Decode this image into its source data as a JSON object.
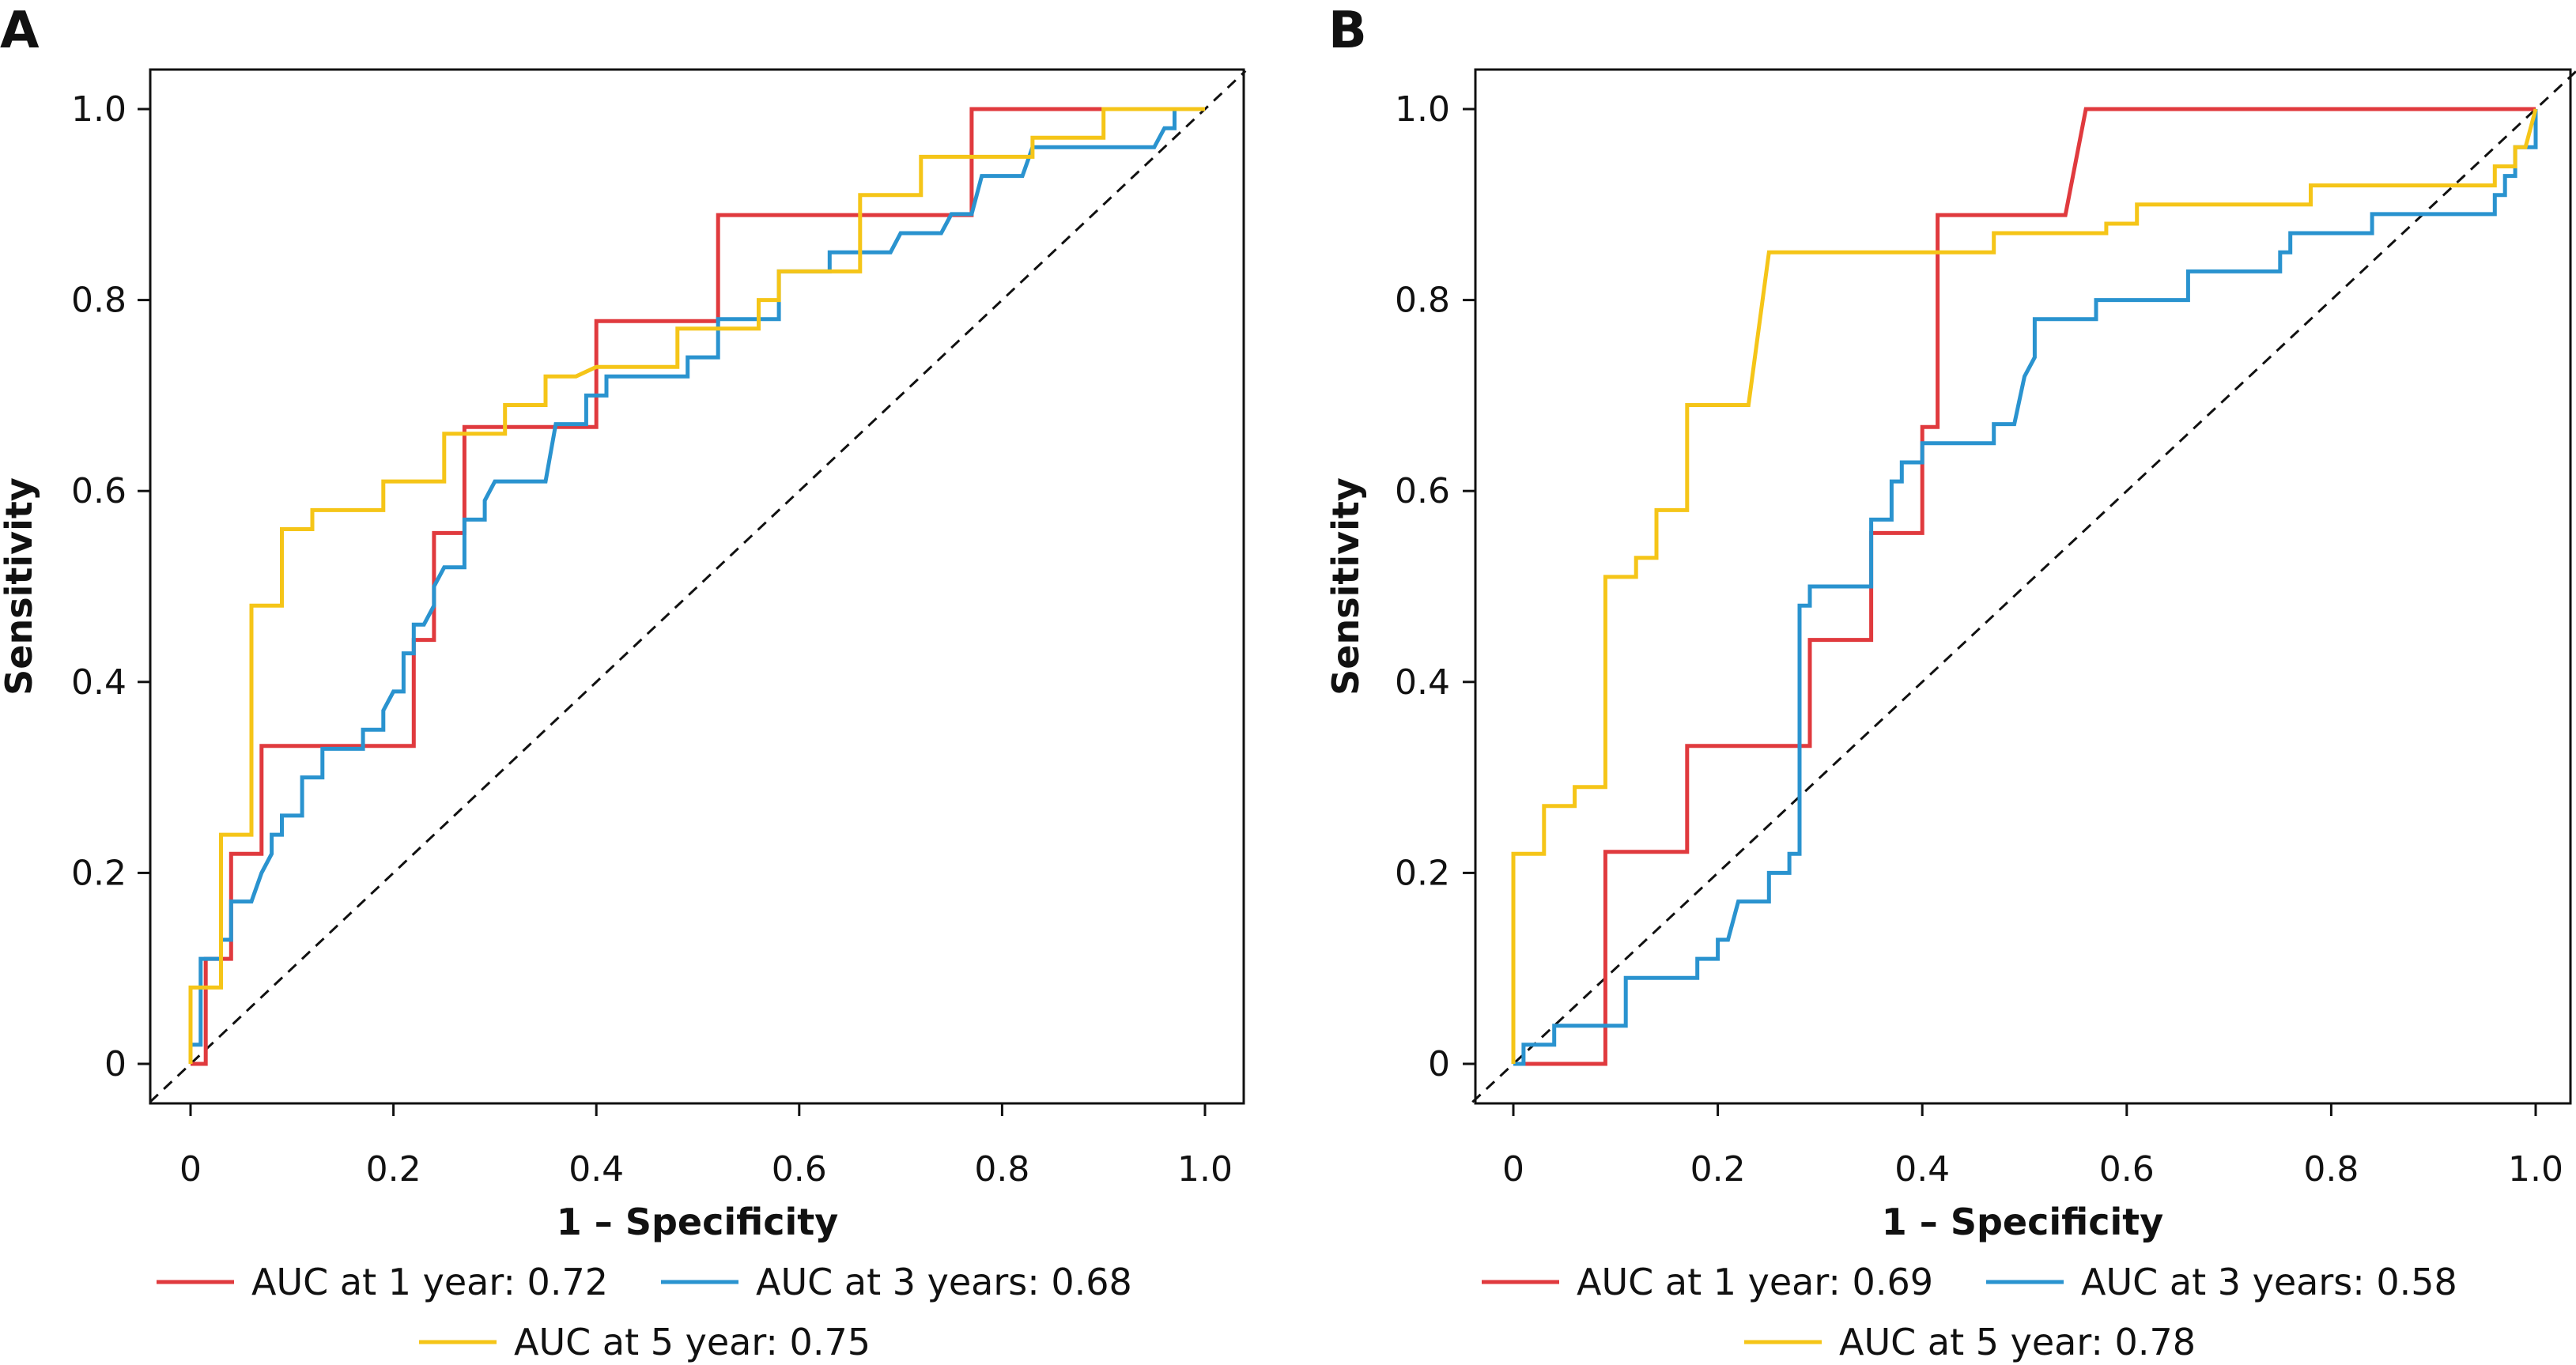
{
  "colors": {
    "red": "#E03A3E",
    "blue": "#2A93CF",
    "yellow": "#F5C518",
    "axis": "#111111",
    "diagonal": "#111111"
  },
  "chart_data": [
    {
      "panel": "A",
      "type": "line",
      "xlabel": "1 – Specificity",
      "ylabel": "Sensitivity",
      "xlim": [
        0,
        1
      ],
      "ylim": [
        0,
        1
      ],
      "xticks": [
        "0",
        "0.2",
        "0.4",
        "0.6",
        "0.8",
        "1.0"
      ],
      "yticks": [
        "0",
        "0.2",
        "0.4",
        "0.6",
        "0.8",
        "1.0"
      ],
      "reference_line": "diagonal dashed",
      "legend": [
        "AUC at 1 year: 0.72",
        "AUC at 3 years: 0.68",
        "AUC at 5 year: 0.75"
      ],
      "series": [
        {
          "name": "AUC at 1 year: 0.72",
          "color": "red",
          "points": [
            [
              0,
              0
            ],
            [
              0.015,
              0
            ],
            [
              0.015,
              0.11
            ],
            [
              0.04,
              0.11
            ],
            [
              0.04,
              0.22
            ],
            [
              0.07,
              0.22
            ],
            [
              0.07,
              0.333
            ],
            [
              0.22,
              0.333
            ],
            [
              0.22,
              0.444
            ],
            [
              0.24,
              0.444
            ],
            [
              0.24,
              0.556
            ],
            [
              0.27,
              0.556
            ],
            [
              0.27,
              0.667
            ],
            [
              0.4,
              0.667
            ],
            [
              0.4,
              0.778
            ],
            [
              0.52,
              0.778
            ],
            [
              0.52,
              0.889
            ],
            [
              0.77,
              0.889
            ],
            [
              0.77,
              1
            ],
            [
              1,
              1
            ]
          ]
        },
        {
          "name": "AUC at 3 years: 0.68",
          "color": "blue",
          "points": [
            [
              0,
              0
            ],
            [
              0,
              0.02
            ],
            [
              0.01,
              0.02
            ],
            [
              0.01,
              0.11
            ],
            [
              0.03,
              0.11
            ],
            [
              0.03,
              0.13
            ],
            [
              0.04,
              0.13
            ],
            [
              0.04,
              0.17
            ],
            [
              0.06,
              0.17
            ],
            [
              0.07,
              0.2
            ],
            [
              0.08,
              0.22
            ],
            [
              0.08,
              0.24
            ],
            [
              0.09,
              0.24
            ],
            [
              0.09,
              0.26
            ],
            [
              0.11,
              0.26
            ],
            [
              0.11,
              0.3
            ],
            [
              0.13,
              0.3
            ],
            [
              0.13,
              0.33
            ],
            [
              0.17,
              0.33
            ],
            [
              0.17,
              0.35
            ],
            [
              0.19,
              0.35
            ],
            [
              0.19,
              0.37
            ],
            [
              0.2,
              0.39
            ],
            [
              0.21,
              0.39
            ],
            [
              0.21,
              0.43
            ],
            [
              0.22,
              0.43
            ],
            [
              0.22,
              0.46
            ],
            [
              0.23,
              0.46
            ],
            [
              0.24,
              0.48
            ],
            [
              0.24,
              0.5
            ],
            [
              0.25,
              0.52
            ],
            [
              0.27,
              0.52
            ],
            [
              0.27,
              0.57
            ],
            [
              0.29,
              0.57
            ],
            [
              0.29,
              0.59
            ],
            [
              0.3,
              0.61
            ],
            [
              0.35,
              0.61
            ],
            [
              0.36,
              0.67
            ],
            [
              0.39,
              0.67
            ],
            [
              0.39,
              0.7
            ],
            [
              0.41,
              0.7
            ],
            [
              0.41,
              0.72
            ],
            [
              0.49,
              0.72
            ],
            [
              0.49,
              0.74
            ],
            [
              0.52,
              0.74
            ],
            [
              0.52,
              0.78
            ],
            [
              0.58,
              0.78
            ],
            [
              0.58,
              0.83
            ],
            [
              0.63,
              0.83
            ],
            [
              0.63,
              0.85
            ],
            [
              0.69,
              0.85
            ],
            [
              0.7,
              0.87
            ],
            [
              0.74,
              0.87
            ],
            [
              0.75,
              0.89
            ],
            [
              0.77,
              0.89
            ],
            [
              0.78,
              0.93
            ],
            [
              0.82,
              0.93
            ],
            [
              0.83,
              0.96
            ],
            [
              0.95,
              0.96
            ],
            [
              0.96,
              0.98
            ],
            [
              0.97,
              0.98
            ],
            [
              0.97,
              1
            ],
            [
              1,
              1
            ]
          ]
        },
        {
          "name": "AUC at 5 year: 0.75",
          "color": "yellow",
          "points": [
            [
              0,
              0
            ],
            [
              0,
              0.08
            ],
            [
              0.03,
              0.08
            ],
            [
              0.03,
              0.24
            ],
            [
              0.06,
              0.24
            ],
            [
              0.06,
              0.48
            ],
            [
              0.09,
              0.48
            ],
            [
              0.09,
              0.56
            ],
            [
              0.12,
              0.56
            ],
            [
              0.12,
              0.58
            ],
            [
              0.19,
              0.58
            ],
            [
              0.19,
              0.61
            ],
            [
              0.25,
              0.61
            ],
            [
              0.25,
              0.66
            ],
            [
              0.31,
              0.66
            ],
            [
              0.31,
              0.69
            ],
            [
              0.35,
              0.69
            ],
            [
              0.35,
              0.72
            ],
            [
              0.38,
              0.72
            ],
            [
              0.4,
              0.73
            ],
            [
              0.48,
              0.73
            ],
            [
              0.48,
              0.77
            ],
            [
              0.56,
              0.77
            ],
            [
              0.56,
              0.8
            ],
            [
              0.58,
              0.8
            ],
            [
              0.58,
              0.83
            ],
            [
              0.66,
              0.83
            ],
            [
              0.66,
              0.91
            ],
            [
              0.72,
              0.91
            ],
            [
              0.72,
              0.95
            ],
            [
              0.83,
              0.95
            ],
            [
              0.83,
              0.97
            ],
            [
              0.9,
              0.97
            ],
            [
              0.9,
              1
            ],
            [
              1,
              1
            ]
          ]
        }
      ]
    },
    {
      "panel": "B",
      "type": "line",
      "xlabel": "1 – Specificity",
      "ylabel": "Sensitivity",
      "xlim": [
        0,
        1
      ],
      "ylim": [
        0,
        1
      ],
      "xticks": [
        "0",
        "0.2",
        "0.4",
        "0.6",
        "0.8",
        "1.0"
      ],
      "yticks": [
        "0",
        "0.2",
        "0.4",
        "0.6",
        "0.8",
        "1.0"
      ],
      "reference_line": "diagonal dashed",
      "legend": [
        "AUC at 1 year: 0.69",
        "AUC at 3 years: 0.58",
        "AUC at 5 year: 0.78"
      ],
      "series": [
        {
          "name": "AUC at 1 year: 0.69",
          "color": "red",
          "points": [
            [
              0,
              0
            ],
            [
              0.09,
              0
            ],
            [
              0.09,
              0.222
            ],
            [
              0.17,
              0.222
            ],
            [
              0.17,
              0.333
            ],
            [
              0.29,
              0.333
            ],
            [
              0.29,
              0.444
            ],
            [
              0.35,
              0.444
            ],
            [
              0.35,
              0.556
            ],
            [
              0.4,
              0.556
            ],
            [
              0.4,
              0.667
            ],
            [
              0.415,
              0.667
            ],
            [
              0.415,
              0.889
            ],
            [
              0.54,
              0.889
            ],
            [
              0.56,
              1
            ],
            [
              1,
              1
            ]
          ]
        },
        {
          "name": "AUC at 3 years: 0.58",
          "color": "blue",
          "points": [
            [
              0,
              0
            ],
            [
              0.01,
              0
            ],
            [
              0.01,
              0.02
            ],
            [
              0.04,
              0.02
            ],
            [
              0.04,
              0.04
            ],
            [
              0.11,
              0.04
            ],
            [
              0.11,
              0.09
            ],
            [
              0.18,
              0.09
            ],
            [
              0.18,
              0.11
            ],
            [
              0.2,
              0.11
            ],
            [
              0.2,
              0.13
            ],
            [
              0.21,
              0.13
            ],
            [
              0.22,
              0.17
            ],
            [
              0.25,
              0.17
            ],
            [
              0.25,
              0.2
            ],
            [
              0.27,
              0.2
            ],
            [
              0.27,
              0.22
            ],
            [
              0.28,
              0.22
            ],
            [
              0.28,
              0.48
            ],
            [
              0.29,
              0.48
            ],
            [
              0.29,
              0.5
            ],
            [
              0.35,
              0.5
            ],
            [
              0.35,
              0.57
            ],
            [
              0.37,
              0.57
            ],
            [
              0.37,
              0.61
            ],
            [
              0.38,
              0.61
            ],
            [
              0.38,
              0.63
            ],
            [
              0.4,
              0.63
            ],
            [
              0.4,
              0.65
            ],
            [
              0.47,
              0.65
            ],
            [
              0.47,
              0.67
            ],
            [
              0.49,
              0.67
            ],
            [
              0.5,
              0.72
            ],
            [
              0.51,
              0.74
            ],
            [
              0.51,
              0.78
            ],
            [
              0.57,
              0.78
            ],
            [
              0.57,
              0.8
            ],
            [
              0.66,
              0.8
            ],
            [
              0.66,
              0.83
            ],
            [
              0.75,
              0.83
            ],
            [
              0.75,
              0.85
            ],
            [
              0.76,
              0.85
            ],
            [
              0.76,
              0.87
            ],
            [
              0.84,
              0.87
            ],
            [
              0.84,
              0.89
            ],
            [
              0.96,
              0.89
            ],
            [
              0.96,
              0.91
            ],
            [
              0.97,
              0.91
            ],
            [
              0.97,
              0.93
            ],
            [
              0.98,
              0.93
            ],
            [
              0.98,
              0.96
            ],
            [
              1,
              0.96
            ],
            [
              1,
              1
            ]
          ]
        },
        {
          "name": "AUC at 5 year: 0.78",
          "color": "yellow",
          "points": [
            [
              0,
              0
            ],
            [
              0,
              0.22
            ],
            [
              0.03,
              0.22
            ],
            [
              0.03,
              0.27
            ],
            [
              0.06,
              0.27
            ],
            [
              0.06,
              0.29
            ],
            [
              0.09,
              0.29
            ],
            [
              0.09,
              0.51
            ],
            [
              0.12,
              0.51
            ],
            [
              0.12,
              0.53
            ],
            [
              0.14,
              0.53
            ],
            [
              0.14,
              0.58
            ],
            [
              0.17,
              0.58
            ],
            [
              0.17,
              0.69
            ],
            [
              0.23,
              0.69
            ],
            [
              0.25,
              0.85
            ],
            [
              0.47,
              0.85
            ],
            [
              0.47,
              0.87
            ],
            [
              0.58,
              0.87
            ],
            [
              0.58,
              0.88
            ],
            [
              0.61,
              0.88
            ],
            [
              0.61,
              0.9
            ],
            [
              0.78,
              0.9
            ],
            [
              0.78,
              0.92
            ],
            [
              0.96,
              0.92
            ],
            [
              0.96,
              0.94
            ],
            [
              0.98,
              0.94
            ],
            [
              0.98,
              0.96
            ],
            [
              0.99,
              0.96
            ],
            [
              1,
              1
            ]
          ]
        }
      ]
    }
  ]
}
